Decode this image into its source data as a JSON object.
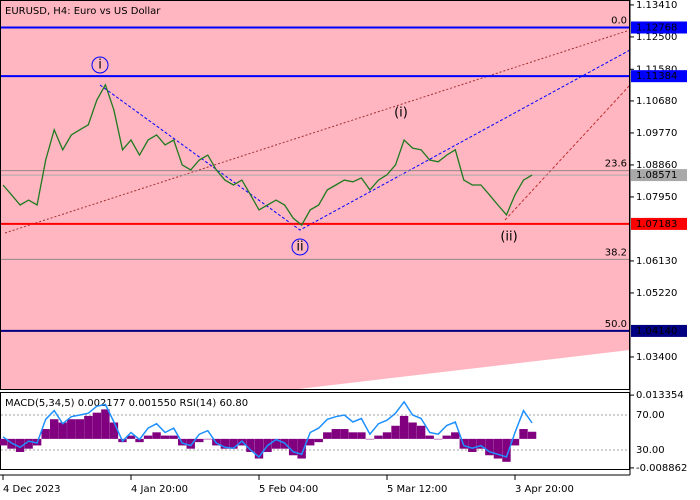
{
  "chart_data": [
    {
      "type": "line",
      "title": "EURUSD, H4:  Euro vs US Dollar",
      "categories": [
        "4 Dec 2023",
        null,
        null,
        null,
        null,
        null,
        null,
        null,
        null,
        null,
        null,
        null,
        null,
        null,
        null,
        "4 Jan 20:00",
        null,
        null,
        null,
        null,
        null,
        null,
        null,
        null,
        null,
        null,
        null,
        null,
        null,
        null,
        "5 Feb 04:00",
        null,
        null,
        null,
        null,
        null,
        null,
        null,
        null,
        null,
        null,
        null,
        null,
        null,
        null,
        "5 Mar 12:00",
        null,
        null,
        null,
        null,
        null,
        null,
        null,
        null,
        null,
        null,
        null,
        null,
        null,
        null,
        "3 Apr 20:00",
        null,
        null
      ],
      "series": [
        {
          "color": "#1f7a1f",
          "values": [
            1.0829,
            1.0801,
            1.0772,
            1.0786,
            1.0772,
            1.09,
            1.0986,
            1.0929,
            1.0971,
            1.0986,
            1.1,
            1.1071,
            1.1114,
            1.1042,
            1.0929,
            1.0957,
            1.0914,
            1.0957,
            1.0971,
            1.0943,
            1.0957,
            1.0886,
            1.0872,
            1.09,
            1.0914,
            1.0872,
            1.0843,
            1.0829,
            1.0843,
            1.0801,
            1.0758,
            1.0772,
            1.0786,
            1.0772,
            1.0735,
            1.0715,
            1.0758,
            1.0772,
            1.0815,
            1.0829,
            1.0843,
            1.0838,
            1.0849,
            1.0815,
            1.0843,
            1.0858,
            1.0886,
            1.0957,
            1.0934,
            1.0929,
            1.09,
            1.0895,
            1.0914,
            1.0929,
            1.0843,
            1.0829,
            1.0829,
            1.0801,
            1.0772,
            1.0744,
            1.0801,
            1.0843,
            1.0857
          ]
        }
      ],
      "ylim": [
        1.0246,
        1.1355
      ],
      "yticks": [
        {
          "value": 1.1341,
          "label": "1.13410"
        },
        {
          "value": 1.125,
          "label": "1.12500"
        },
        {
          "value": 1.1158,
          "label": "1.11580"
        },
        {
          "value": 1.1068,
          "label": "1.10680"
        },
        {
          "value": 1.0977,
          "label": "1.09770"
        },
        {
          "value": 1.0886,
          "label": "1.08860"
        },
        {
          "value": 1.0795,
          "label": "1.07950"
        },
        {
          "value": 1.0613,
          "label": "1.06130"
        },
        {
          "value": 1.0522,
          "label": "1.05220"
        },
        {
          "value": 1.034,
          "label": "1.03400"
        }
      ],
      "levels": [
        {
          "value": 1.12768,
          "label": "1.12768",
          "color": "#0000ff"
        },
        {
          "value": 1.11384,
          "label": "1.11384",
          "color": "#0000ff"
        },
        {
          "value": 1.08571,
          "label": "1.08571",
          "color": "#a9a9a9"
        },
        {
          "value": 1.07183,
          "label": "1.07183",
          "color": "#ff0000"
        },
        {
          "value": 1.0414,
          "label": "1.04140",
          "color": "#000080"
        }
      ],
      "fibonacci": [
        {
          "value": 1.12768,
          "label": "0.0"
        },
        {
          "value": 1.08696,
          "label": "23.6"
        },
        {
          "value": 1.06176,
          "label": "38.2"
        },
        {
          "value": 1.0414,
          "label": "50.0"
        }
      ],
      "annotations": [
        {
          "text": "i",
          "color": "#0000ff"
        },
        {
          "text": "ii",
          "color": "#0000ff"
        },
        {
          "text": "(i)",
          "color": "#d01010"
        },
        {
          "text": "(ii)",
          "color": "#d01010"
        }
      ]
    },
    {
      "type": "bar",
      "title": "MACD(5,34,5) 0.002177 0.001550 RSI(14) 60.80",
      "series": [
        {
          "color": "#800080",
          "values": [
            -0.002,
            -0.003,
            -0.004,
            -0.003,
            -0.002,
            0.003,
            0.006,
            0.005,
            0.006,
            0.006,
            0.007,
            0.008,
            0.009,
            0.005,
            -0.001,
            0.001,
            -0.001,
            0.001,
            0.002,
            0.001,
            0.001,
            -0.002,
            -0.003,
            -0.001,
            0,
            -0.002,
            -0.003,
            -0.003,
            -0.002,
            -0.004,
            -0.006,
            -0.004,
            -0.003,
            -0.003,
            -0.005,
            -0.006,
            -0.002,
            -0.001,
            0.002,
            0.003,
            0.003,
            0.002,
            0.002,
            0,
            0.001,
            0.002,
            0.004,
            0.007,
            0.005,
            0.004,
            0.001,
            0,
            0.001,
            0.002,
            -0.003,
            -0.004,
            -0.003,
            -0.005,
            -0.006,
            -0.007,
            -0.002,
            0.003,
            0.002177
          ]
        },
        {
          "type": "line",
          "axis": "y2",
          "color": "#1e90ff",
          "values": [
            45,
            38,
            33,
            40,
            38,
            65,
            75,
            60,
            68,
            70,
            72,
            80,
            82,
            62,
            40,
            50,
            42,
            55,
            60,
            50,
            55,
            38,
            35,
            48,
            52,
            38,
            33,
            32,
            40,
            30,
            22,
            35,
            42,
            38,
            28,
            25,
            50,
            55,
            65,
            68,
            70,
            62,
            66,
            48,
            60,
            64,
            72,
            85,
            70,
            66,
            50,
            48,
            58,
            62,
            35,
            32,
            35,
            28,
            25,
            22,
            50,
            75,
            60.8
          ]
        }
      ],
      "ylim": [
        -0.0095,
        0.014
      ],
      "yticks": [
        {
          "value": 0.013354,
          "label": "0.013354"
        },
        {
          "value": -0.008862,
          "label": "-0.008862"
        }
      ],
      "y2lim": [
        7.1,
        95.1
      ],
      "y2ticks": [
        {
          "value": 70,
          "label": "70.00"
        },
        {
          "value": 30,
          "label": "30.00"
        }
      ]
    }
  ]
}
